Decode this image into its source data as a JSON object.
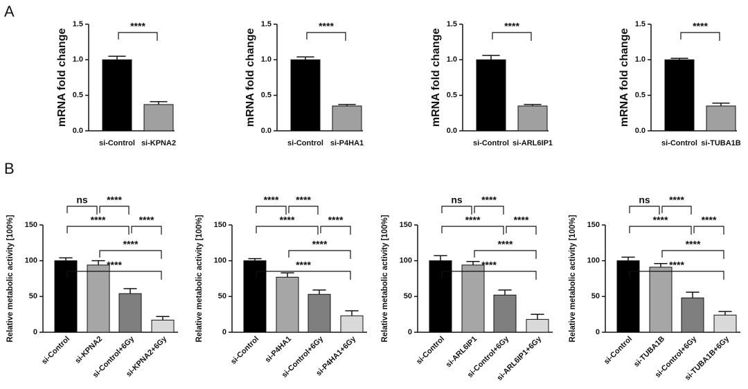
{
  "panel_labels": [
    "A",
    "B"
  ],
  "chart_data": [
    {
      "type": "bar",
      "ylabel": "mRNA fold change",
      "categories": [
        "si-Control",
        "si-KPNA2"
      ],
      "values": [
        1.0,
        0.37
      ],
      "errors": [
        0.05,
        0.04
      ],
      "colors": [
        "#000000",
        "#a0a0a0"
      ],
      "ylim": [
        0,
        1.5
      ],
      "yticks": [
        {
          "value": 0,
          "label": "0.0"
        },
        0.5,
        {
          "value": 1,
          "label": "1.0"
        },
        1.5
      ],
      "annotations": [
        {
          "from": 0,
          "to": 1,
          "label": "****"
        }
      ]
    },
    {
      "type": "bar",
      "ylabel": "mRNA fold change",
      "categories": [
        "si-Control",
        "si-P4HA1"
      ],
      "values": [
        1.0,
        0.35
      ],
      "errors": [
        0.04,
        0.02
      ],
      "colors": [
        "#000000",
        "#a0a0a0"
      ],
      "ylim": [
        0,
        1.5
      ],
      "yticks": [
        {
          "value": 0,
          "label": "0.0"
        },
        0.5,
        {
          "value": 1,
          "label": "1.0"
        },
        1.5
      ],
      "annotations": [
        {
          "from": 0,
          "to": 1,
          "label": "****"
        }
      ]
    },
    {
      "type": "bar",
      "ylabel": "mRNA fold change",
      "categories": [
        "si-Control",
        "si-ARL6IP1"
      ],
      "values": [
        1.0,
        0.35
      ],
      "errors": [
        0.06,
        0.02
      ],
      "colors": [
        "#000000",
        "#a0a0a0"
      ],
      "ylim": [
        0,
        1.5
      ],
      "yticks": [
        {
          "value": 0,
          "label": "0.0"
        },
        0.5,
        {
          "value": 1,
          "label": "1.0"
        },
        1.5
      ],
      "annotations": [
        {
          "from": 0,
          "to": 1,
          "label": "****"
        }
      ]
    },
    {
      "type": "bar",
      "ylabel": "mRNA fold change",
      "categories": [
        "si-Control",
        "si-TUBA1B"
      ],
      "values": [
        1.0,
        0.35
      ],
      "errors": [
        0.02,
        0.04
      ],
      "colors": [
        "#000000",
        "#a0a0a0"
      ],
      "ylim": [
        0,
        1.5
      ],
      "yticks": [
        {
          "value": 0,
          "label": "0.0"
        },
        0.5,
        {
          "value": 1,
          "label": "1.0"
        },
        1.5
      ],
      "annotations": [
        {
          "from": 0,
          "to": 1,
          "label": "****"
        }
      ]
    },
    {
      "type": "bar",
      "ylabel": "Relative metabolic activity [100%]",
      "categories": [
        "si-Control",
        "si-KPNA2",
        "si-Control+6Gy",
        "si-KPNA2+6Gy"
      ],
      "values": [
        100,
        94,
        54,
        17
      ],
      "errors": [
        4,
        6,
        7,
        5
      ],
      "colors": [
        "#000000",
        "#a6a6a6",
        "#7f7f7f",
        "#d9d9d9"
      ],
      "ylim": [
        0,
        150
      ],
      "yticks": [
        0,
        50,
        100,
        150
      ],
      "annotations": [
        {
          "from": 0,
          "to": 1,
          "label": "ns"
        },
        {
          "from": 1,
          "to": 2,
          "label": "****"
        },
        {
          "from": 0,
          "to": 2,
          "label": "****"
        },
        {
          "from": 2,
          "to": 3,
          "label": "****"
        },
        {
          "from": 1,
          "to": 3,
          "label": "****"
        },
        {
          "from": 0,
          "to": 3,
          "label": "****"
        }
      ]
    },
    {
      "type": "bar",
      "ylabel": "Relative metabolic activity [100%]",
      "categories": [
        "si-Control",
        "si-P4HA1",
        "si-Control+6Gy",
        "si-P4HA1+6Gy"
      ],
      "values": [
        100,
        77,
        53,
        23
      ],
      "errors": [
        3,
        6,
        6,
        7
      ],
      "colors": [
        "#000000",
        "#a6a6a6",
        "#7f7f7f",
        "#d9d9d9"
      ],
      "ylim": [
        0,
        150
      ],
      "yticks": [
        0,
        50,
        100,
        150
      ],
      "annotations": [
        {
          "from": 0,
          "to": 1,
          "label": "****"
        },
        {
          "from": 1,
          "to": 2,
          "label": "****"
        },
        {
          "from": 0,
          "to": 2,
          "label": "****"
        },
        {
          "from": 2,
          "to": 3,
          "label": "****"
        },
        {
          "from": 1,
          "to": 3,
          "label": "****"
        },
        {
          "from": 0,
          "to": 3,
          "label": "****"
        }
      ]
    },
    {
      "type": "bar",
      "ylabel": "Relative metabolic activity [100%]",
      "categories": [
        "si-Control",
        "si-ARL6IP1",
        "si-Control+6Gy",
        "si-ARL6IP1+6Gy"
      ],
      "values": [
        100,
        94,
        52,
        18
      ],
      "errors": [
        7,
        5,
        7,
        7
      ],
      "colors": [
        "#000000",
        "#a6a6a6",
        "#7f7f7f",
        "#d9d9d9"
      ],
      "ylim": [
        0,
        150
      ],
      "yticks": [
        0,
        50,
        100,
        150
      ],
      "annotations": [
        {
          "from": 0,
          "to": 1,
          "label": "ns"
        },
        {
          "from": 1,
          "to": 2,
          "label": "****"
        },
        {
          "from": 0,
          "to": 2,
          "label": "****"
        },
        {
          "from": 2,
          "to": 3,
          "label": "****"
        },
        {
          "from": 1,
          "to": 3,
          "label": "****"
        },
        {
          "from": 0,
          "to": 3,
          "label": "****"
        }
      ]
    },
    {
      "type": "bar",
      "ylabel": "Relative metabolic activity [100%]",
      "categories": [
        "si-Control",
        "si-TUBA1B",
        "si-Control+6Gy",
        "si-TUBA1B+6Gy"
      ],
      "values": [
        100,
        91,
        48,
        24
      ],
      "errors": [
        5,
        5,
        8,
        5
      ],
      "colors": [
        "#000000",
        "#a6a6a6",
        "#7f7f7f",
        "#d9d9d9"
      ],
      "ylim": [
        0,
        150
      ],
      "yticks": [
        0,
        50,
        100,
        150
      ],
      "annotations": [
        {
          "from": 0,
          "to": 1,
          "label": "ns"
        },
        {
          "from": 1,
          "to": 2,
          "label": "****"
        },
        {
          "from": 0,
          "to": 2,
          "label": "****"
        },
        {
          "from": 2,
          "to": 3,
          "label": "****"
        },
        {
          "from": 1,
          "to": 3,
          "label": "****"
        },
        {
          "from": 0,
          "to": 3,
          "label": "****"
        }
      ]
    }
  ]
}
